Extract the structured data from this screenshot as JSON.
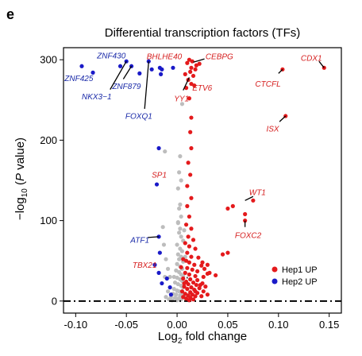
{
  "panel_label": "e",
  "chart_data": {
    "type": "scatter",
    "title": "Differential transcription factors (TFs)",
    "xlabel": "Log₂ fold change",
    "ylabel_parts": [
      "−log",
      "10",
      " (",
      "P",
      " value)"
    ],
    "xlim": [
      -0.112,
      0.162
    ],
    "ylim": [
      -15,
      315
    ],
    "xticks": [
      -0.1,
      -0.05,
      0,
      0.05,
      0.1,
      0.15
    ],
    "xtick_labels": [
      "-0.10",
      "-0.05",
      "0.00",
      "0.05",
      "0.10",
      "0.15"
    ],
    "yticks": [
      0,
      100,
      200,
      300
    ],
    "ytick_labels": [
      "0",
      "100",
      "200",
      "300"
    ],
    "threshold_y": 0,
    "grid": false,
    "legend_position": "bottom-right",
    "colors": {
      "hep1": "#e41a1c",
      "hep2": "#1a1ac8",
      "ns": "#bdbdbd",
      "label_hep1": "#d62020",
      "label_hep2": "#1a2aa8"
    },
    "series": [
      {
        "name": "Hep1 UP",
        "color_key": "hep1",
        "points": [
          [
            0.145,
            290
          ],
          [
            0.104,
            288
          ],
          [
            0.107,
            230
          ],
          [
            0.075,
            125
          ],
          [
            0.067,
            108
          ],
          [
            0.067,
            100
          ],
          [
            0.055,
            118
          ],
          [
            0.05,
            115
          ],
          [
            0.05,
            60
          ],
          [
            0.045,
            58
          ],
          [
            0.038,
            32
          ],
          [
            0.03,
            34
          ],
          [
            0.025,
            22
          ],
          [
            0.014,
            290
          ],
          [
            0.015,
            298
          ],
          [
            0.012,
            300
          ],
          [
            0.01,
            296
          ],
          [
            0.013,
            285
          ],
          [
            0.008,
            282
          ],
          [
            0.016,
            280
          ],
          [
            0.011,
            275
          ],
          [
            0.014,
            270
          ],
          [
            0.009,
            265
          ],
          [
            0.018,
            288
          ],
          [
            0.019,
            293
          ],
          [
            0.022,
            295
          ],
          [
            0.017,
            268
          ],
          [
            0.012,
            252
          ],
          [
            0.014,
            228
          ],
          [
            0.013,
            210
          ],
          [
            0.014,
            190
          ],
          [
            0.011,
            172
          ],
          [
            0.013,
            157
          ],
          [
            0.01,
            143
          ],
          [
            0.014,
            128
          ],
          [
            0.01,
            118
          ],
          [
            0.012,
            105
          ],
          [
            0.009,
            95
          ],
          [
            0.014,
            90
          ],
          [
            0.011,
            80
          ],
          [
            0.016,
            76
          ],
          [
            0.008,
            72
          ],
          [
            0.012,
            68
          ],
          [
            0.018,
            65
          ],
          [
            0.01,
            60
          ],
          [
            0.014,
            55
          ],
          [
            0.021,
            54
          ],
          [
            0.009,
            50
          ],
          [
            0.012,
            48
          ],
          [
            0.017,
            45
          ],
          [
            0.024,
            44
          ],
          [
            0.01,
            41
          ],
          [
            0.015,
            39
          ],
          [
            0.02,
            37
          ],
          [
            0.008,
            35
          ],
          [
            0.012,
            33
          ],
          [
            0.018,
            31
          ],
          [
            0.026,
            30
          ],
          [
            0.006,
            28
          ],
          [
            0.013,
            27
          ],
          [
            0.02,
            26
          ],
          [
            0.009,
            24
          ],
          [
            0.016,
            23
          ],
          [
            0.011,
            21
          ],
          [
            0.019,
            20
          ],
          [
            0.007,
            18
          ],
          [
            0.014,
            17
          ],
          [
            0.022,
            16
          ],
          [
            0.01,
            15
          ],
          [
            0.017,
            14
          ],
          [
            0.005,
            12
          ],
          [
            0.013,
            11
          ],
          [
            0.02,
            10
          ],
          [
            0.008,
            9
          ],
          [
            0.015,
            8
          ],
          [
            0.011,
            7
          ],
          [
            0.018,
            6
          ],
          [
            0.006,
            5
          ],
          [
            0.013,
            4
          ],
          [
            0.009,
            3
          ],
          [
            0.016,
            2
          ],
          [
            0.012,
            1
          ],
          [
            0.007,
            22
          ],
          [
            0.023,
            20
          ],
          [
            0.028,
            18
          ],
          [
            0.004,
            42
          ],
          [
            0.006,
            52
          ],
          [
            0.025,
            48
          ],
          [
            0.027,
            40
          ],
          [
            0.03,
            45
          ],
          [
            0.032,
            35
          ],
          [
            0.026,
            12
          ],
          [
            0.024,
            6
          ],
          [
            0.03,
            8
          ],
          [
            0.018,
            12
          ]
        ]
      },
      {
        "name": "Hep2 UP",
        "color_key": "hep2",
        "points": [
          [
            -0.094,
            292
          ],
          [
            -0.083,
            284
          ],
          [
            -0.056,
            292
          ],
          [
            -0.05,
            298
          ],
          [
            -0.045,
            292
          ],
          [
            -0.037,
            283
          ],
          [
            -0.028,
            298
          ],
          [
            -0.025,
            288
          ],
          [
            -0.015,
            288
          ],
          [
            -0.016,
            282
          ],
          [
            -0.017,
            290
          ],
          [
            -0.018,
            190
          ],
          [
            -0.02,
            145
          ],
          [
            -0.018,
            80
          ],
          [
            -0.017,
            60
          ],
          [
            -0.022,
            45
          ],
          [
            -0.018,
            35
          ],
          [
            -0.015,
            22
          ],
          [
            -0.01,
            28
          ],
          [
            -0.007,
            17
          ],
          [
            -0.006,
            8
          ],
          [
            -0.004,
            290
          ]
        ]
      },
      {
        "color_key": "ns",
        "points": [
          [
            0.005,
            245
          ],
          [
            0.003,
            180
          ],
          [
            0.002,
            160
          ],
          [
            0.004,
            150
          ],
          [
            0.001,
            140
          ],
          [
            0.003,
            120
          ],
          [
            0.002,
            115
          ],
          [
            0.004,
            105
          ],
          [
            0.001,
            98
          ],
          [
            0.003,
            90
          ],
          [
            0.002,
            85
          ],
          [
            0.004,
            80
          ],
          [
            0.006,
            75
          ],
          [
            0.0,
            70
          ],
          [
            0.003,
            65
          ],
          [
            0.005,
            62
          ],
          [
            0.001,
            58
          ],
          [
            0.004,
            55
          ],
          [
            0.002,
            52
          ],
          [
            0.006,
            49
          ],
          [
            0.0,
            46
          ],
          [
            0.003,
            43
          ],
          [
            0.005,
            40
          ],
          [
            -0.001,
            38
          ],
          [
            0.002,
            36
          ],
          [
            0.004,
            33
          ],
          [
            0.006,
            31
          ],
          [
            0.0,
            29
          ],
          [
            0.003,
            27
          ],
          [
            0.005,
            25
          ],
          [
            -0.002,
            23
          ],
          [
            0.001,
            21
          ],
          [
            0.004,
            19
          ],
          [
            0.006,
            17
          ],
          [
            -0.003,
            15
          ],
          [
            0.0,
            13
          ],
          [
            0.002,
            12
          ],
          [
            0.005,
            10
          ],
          [
            -0.004,
            9
          ],
          [
            -0.001,
            8
          ],
          [
            0.003,
            7
          ],
          [
            0.006,
            6
          ],
          [
            -0.006,
            5
          ],
          [
            -0.002,
            4
          ],
          [
            0.001,
            3
          ],
          [
            0.004,
            2
          ],
          [
            -0.008,
            2
          ],
          [
            -0.005,
            1
          ],
          [
            -0.012,
            186
          ],
          [
            -0.013,
            70
          ],
          [
            -0.014,
            92
          ],
          [
            -0.011,
            52
          ],
          [
            -0.009,
            40
          ],
          [
            -0.012,
            30
          ],
          [
            -0.009,
            12
          ],
          [
            -0.011,
            5
          ],
          [
            -0.007,
            30
          ],
          [
            0.007,
            88
          ],
          [
            0.008,
            55
          ],
          [
            0.002,
            3
          ],
          [
            0.0,
            1
          ],
          [
            0.008,
            4
          ],
          [
            -0.003,
            30
          ],
          [
            0.001,
            97
          ]
        ]
      }
    ],
    "annotations": [
      {
        "label": "ZNF430",
        "group": "hep2",
        "point": [
          -0.056,
          292
        ],
        "text_at": [
          -0.079,
          305
        ],
        "anchor": "start",
        "line": false
      },
      {
        "label": "ZNF425",
        "group": "hep2",
        "point": [
          -0.094,
          292
        ],
        "text_at": [
          -0.111,
          277
        ],
        "anchor": "start",
        "line": false
      },
      {
        "label": "ZNF879",
        "group": "hep2",
        "point": [
          -0.045,
          292
        ],
        "text_at": [
          -0.064,
          267
        ],
        "anchor": "start",
        "line": true,
        "line_to": [
          -0.053,
          276
        ]
      },
      {
        "label": "NKX3−1",
        "group": "hep2",
        "point": [
          -0.05,
          298
        ],
        "text_at": [
          -0.094,
          254
        ],
        "anchor": "start",
        "line": true,
        "line_to": [
          -0.066,
          263
        ]
      },
      {
        "label": "FOXQ1",
        "group": "hep2",
        "point": [
          -0.028,
          298
        ],
        "text_at": [
          -0.051,
          230
        ],
        "anchor": "start",
        "line": true,
        "line_to": [
          -0.032,
          239
        ]
      },
      {
        "label": "BHLHE40",
        "group": "hep1",
        "point": [
          0.013,
          297
        ],
        "text_at": [
          -0.03,
          304
        ],
        "anchor": "start",
        "line": false
      },
      {
        "label": "CEBPG",
        "group": "hep1",
        "point": [
          0.016,
          297
        ],
        "text_at": [
          0.028,
          304
        ],
        "anchor": "start",
        "line": true,
        "line_to": [
          0.027,
          301
        ]
      },
      {
        "label": "YY1",
        "group": "hep1",
        "point": [
          0.012,
          278
        ],
        "text_at": [
          -0.003,
          252
        ],
        "anchor": "start",
        "line": true,
        "line_to": [
          0.006,
          262
        ]
      },
      {
        "label": "ETV6",
        "group": "hep1",
        "point": [
          0.018,
          288
        ],
        "text_at": [
          0.015,
          265
        ],
        "anchor": "start",
        "line": false
      },
      {
        "label": "CDX1",
        "group": "hep1",
        "point": [
          0.145,
          290
        ],
        "text_at": [
          0.122,
          302
        ],
        "anchor": "start",
        "line": true,
        "line_to": [
          0.14,
          298
        ]
      },
      {
        "label": "CTCFL",
        "group": "hep1",
        "point": [
          0.104,
          288
        ],
        "text_at": [
          0.077,
          270
        ],
        "anchor": "start",
        "line": true,
        "line_to": [
          0.1,
          283
        ]
      },
      {
        "label": "ISX",
        "group": "hep1",
        "point": [
          0.107,
          230
        ],
        "text_at": [
          0.088,
          214
        ],
        "anchor": "start",
        "line": true,
        "line_to": [
          0.101,
          223
        ]
      },
      {
        "label": "SP1",
        "group": "hep1",
        "point": [
          0.01,
          143
        ],
        "text_at": [
          -0.025,
          157
        ],
        "anchor": "start",
        "line": false
      },
      {
        "label": "WT1",
        "group": "hep1",
        "point": [
          0.067,
          125
        ],
        "text_at": [
          0.071,
          135
        ],
        "anchor": "start",
        "line": true,
        "line_to": [
          0.075,
          130
        ]
      },
      {
        "label": "FOXC2",
        "group": "hep1",
        "point": [
          0.067,
          100
        ],
        "text_at": [
          0.057,
          82
        ],
        "anchor": "start",
        "line": true,
        "line_to": [
          0.067,
          92
        ]
      },
      {
        "label": "ATF1",
        "group": "hep2",
        "point": [
          -0.018,
          80
        ],
        "text_at": [
          -0.046,
          76
        ],
        "anchor": "start",
        "line": true,
        "line_to": [
          -0.029,
          79
        ]
      },
      {
        "label": "TBX21",
        "group": "hep1",
        "point": [
          0.01,
          28
        ],
        "text_at": [
          -0.044,
          45
        ],
        "anchor": "start",
        "line": true,
        "line_to": [
          0.01,
          30
        ]
      }
    ],
    "legend": [
      {
        "label": "Hep1 UP",
        "color_key": "hep1"
      },
      {
        "label": "Hep2 UP",
        "color_key": "hep2"
      }
    ]
  }
}
